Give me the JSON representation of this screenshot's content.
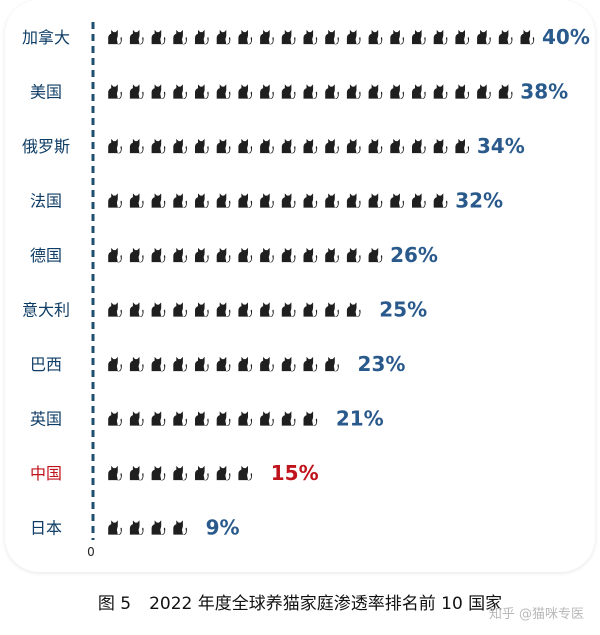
{
  "chart_data": {
    "type": "bar",
    "categories": [
      "加拿大",
      "美国",
      "俄罗斯",
      "法国",
      "德国",
      "意大利",
      "巴西",
      "英国",
      "中国",
      "日本"
    ],
    "values": [
      40,
      38,
      34,
      32,
      26,
      25,
      23,
      21,
      15,
      9
    ],
    "value_labels": [
      "40%",
      "38%",
      "34%",
      "32%",
      "26%",
      "25%",
      "23%",
      "21%",
      "15%",
      "9%"
    ],
    "unit": "%",
    "icon": "cat-icon",
    "icon_value": 2,
    "origin_label": "0",
    "colors": {
      "icon": "#1f1f1f",
      "label": "#0f3d66",
      "value": "#2a5a8c",
      "highlight": "#c0141c",
      "axis": "#1f4e6e"
    },
    "highlight_category": "中国"
  },
  "caption": {
    "figure": "图 5",
    "text": "2022 年度全球养猫家庭渗透率排名前 10 国家"
  },
  "watermark": "知乎 @猫咪专医"
}
